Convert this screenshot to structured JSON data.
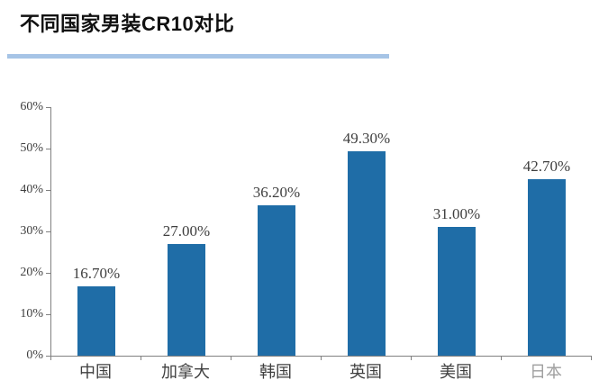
{
  "header": {
    "title": "不同国家男装CR10对比"
  },
  "colors": {
    "title_text": "#111111",
    "title_underline": "#A6C4E6",
    "bar": "#1F6DA7",
    "axis_line": "#808080",
    "tick_label": "#3F3F3F",
    "data_label": "#3F3F3F"
  },
  "chart_data": {
    "type": "bar",
    "title": "不同国家男装CR10对比",
    "categories": [
      "中国",
      "加拿大",
      "韩国",
      "英国",
      "美国",
      "日本"
    ],
    "values": [
      16.7,
      27.0,
      36.2,
      49.3,
      31.0,
      42.7
    ],
    "data_labels": [
      "16.70%",
      "27.00%",
      "36.20%",
      "49.30%",
      "31.00%",
      "42.70%"
    ],
    "xlabel": "",
    "ylabel": "",
    "ylim": [
      0,
      60
    ],
    "ytick_step": 10,
    "ytick_labels": [
      "0%",
      "10%",
      "20%",
      "30%",
      "40%",
      "50%",
      "60%"
    ],
    "grid": false,
    "legend": false,
    "unit": "percent"
  }
}
